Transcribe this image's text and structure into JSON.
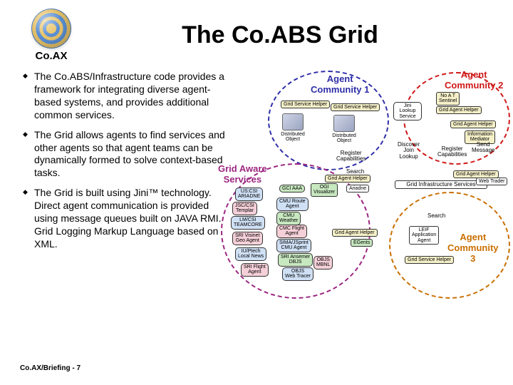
{
  "header": {
    "logo_label": "Co.AX",
    "title": "The Co.ABS Grid"
  },
  "bullets": [
    "The Co.ABS/Infrastructure code provides a framework for integrating diverse agent-based systems, and provides additional common services.",
    "The Grid allows agents to find services and other agents so that agent teams can be dynamically formed to solve context-based tasks.",
    "The Grid is built using Jini™ technology. Direct agent communication is provided using message queues built on JAVA RMI. Grid Logging Markup Language based on XML."
  ],
  "diagram": {
    "communities": {
      "c1": {
        "label": "Agent\nCommunity 1",
        "color": "#2e2ea8"
      },
      "c2": {
        "label": "Agent\nCommunity 2",
        "color": "#d01818"
      },
      "c3": {
        "label": "Agent\nCommunity\n3",
        "color": "#c96f00"
      },
      "gas": {
        "label": "Grid Aware\nServices",
        "color": "#9c2680"
      }
    },
    "helpers": {
      "gsh": "Grid Service Helper",
      "gah": "Grid Agent Helper",
      "noat": "No A T\nSentinel",
      "infmed": "Information\nMediator",
      "gis": "Grid Infrastructure Services",
      "webtrader": "Web Trader",
      "leif": "LEIF\nApplication\nAgent"
    },
    "services_col": [
      "US:CSI\nARIADNE",
      "JSC/CSI\nTemplar",
      "LM/CSI\nTEAMCORE",
      "SRI Visinet\nGeo Agent",
      "IU/Ptech\nLocal News",
      "SRI Flight\nAgent"
    ],
    "services_col2": [
      "GCI AAA",
      "CMU Route\nAgent",
      "CMU\nWeather",
      "CMC Flight\nAgent",
      "SIMA/JSprint\nCMU Agent",
      "SRI Ansemer\nDBJS",
      "OBJS\nWeb Tracer",
      "OBJS\nMBNL"
    ],
    "center": {
      "ariadne": "Ariadne",
      "ogi": "OGI\nVisualizer",
      "egents": "EGents"
    },
    "objects": {
      "dist": "Distributed\nObject"
    },
    "annotations": {
      "jini": "Jini\nLookup\nService",
      "reg_caps": "Register\nCapabilities",
      "search": "Search",
      "djl": "Discover\nJoin\nLookup",
      "send": "Send\nMessage",
      "reg_cap2": "Register\nCapabilities",
      "search2": "Search"
    }
  },
  "footer": "Co.AX/Briefing - 7",
  "colors": {
    "bg": "#ffffff",
    "text": "#000000",
    "node_bg": "#f5f0c8",
    "green_bg": "#c8e8c0",
    "blue_bg": "#cfe0f5",
    "pink_bg": "#f5d0d8"
  }
}
